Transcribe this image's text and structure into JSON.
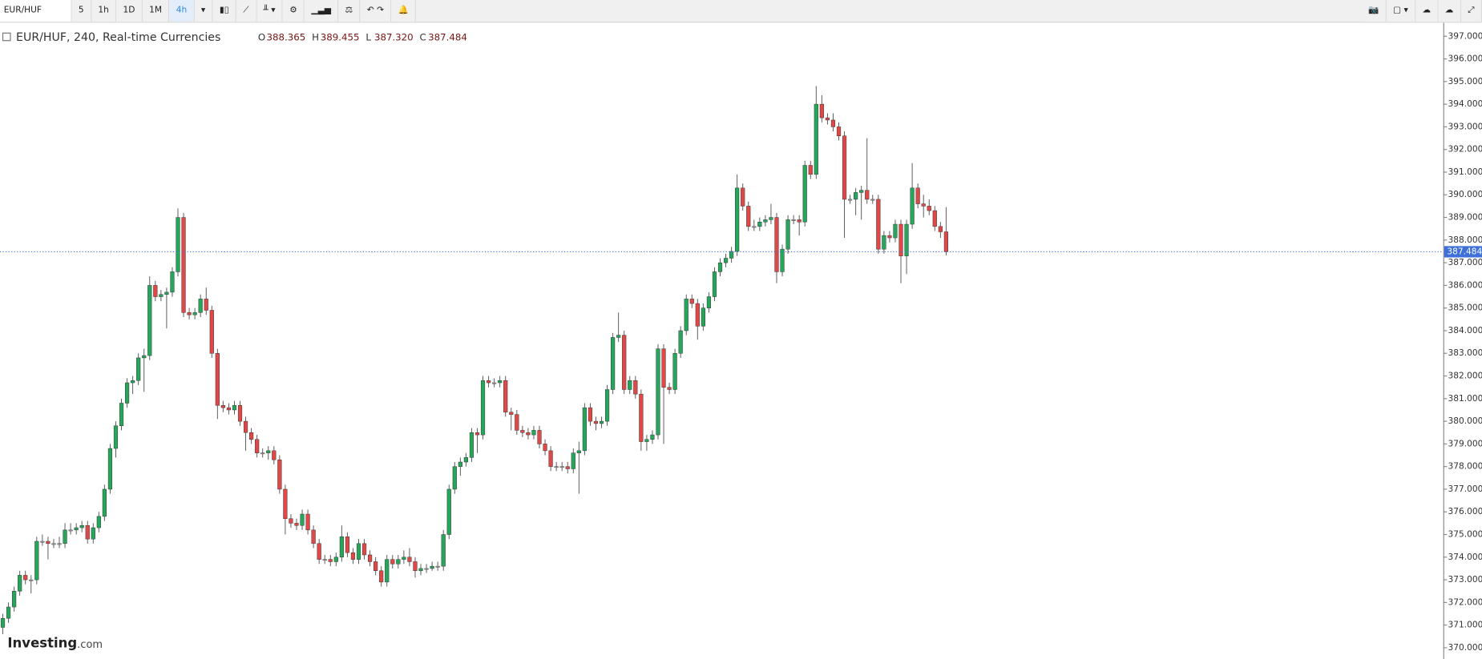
{
  "toolbar": {
    "symbol": "EUR/HUF",
    "intervals": [
      "5",
      "1h",
      "1D",
      "1M",
      "4h"
    ]
  },
  "chart_data": {
    "type": "candlestick",
    "title": "EUR/HUF, 240, Real-time Currencies",
    "ohlc_names": [
      "O",
      "H",
      "L",
      "C"
    ],
    "ohlc_labels": [
      "388.365",
      "389.455",
      "387.320",
      "387.484"
    ],
    "up_color": "#26a65b",
    "down_color": "#e04848",
    "flat_color": "#b8b8b8",
    "price_line_color": "#3f6fd8",
    "ylim": [
      369.5,
      397.6
    ],
    "yticks": [
      {
        "value": 370,
        "label": "370.000"
      },
      {
        "value": 371,
        "label": "371.000"
      },
      {
        "value": 372,
        "label": "372.000"
      },
      {
        "value": 373,
        "label": "373.000"
      },
      {
        "value": 374,
        "label": "374.000"
      },
      {
        "value": 375,
        "label": "375.000"
      },
      {
        "value": 376,
        "label": "376.000"
      },
      {
        "value": 377,
        "label": "377.000"
      },
      {
        "value": 378,
        "label": "378.000"
      },
      {
        "value": 379,
        "label": "379.000"
      },
      {
        "value": 380,
        "label": "380.000"
      },
      {
        "value": 381,
        "label": "381.000"
      },
      {
        "value": 382,
        "label": "382.000"
      },
      {
        "value": 383,
        "label": "383.000"
      },
      {
        "value": 384,
        "label": "384.000"
      },
      {
        "value": 385,
        "label": "385.000"
      },
      {
        "value": 386,
        "label": "386.000"
      },
      {
        "value": 387,
        "label": "387.000"
      },
      {
        "value": 388,
        "label": "388.000"
      },
      {
        "value": 389,
        "label": "389.000"
      },
      {
        "value": 390,
        "label": "390.000"
      },
      {
        "value": 391,
        "label": "391.000"
      },
      {
        "value": 392,
        "label": "392.000"
      },
      {
        "value": 393,
        "label": "393.000"
      },
      {
        "value": 394,
        "label": "394.000"
      },
      {
        "value": 395,
        "label": "395.000"
      },
      {
        "value": 396,
        "label": "396.000"
      },
      {
        "value": 397,
        "label": "397.000"
      }
    ],
    "ohlc": [
      [
        370.9,
        371.5,
        370.6,
        371.3
      ],
      [
        371.3,
        372.0,
        371.1,
        371.8
      ],
      [
        371.8,
        372.7,
        371.6,
        372.5
      ],
      [
        372.5,
        373.4,
        372.3,
        373.2
      ],
      [
        373.2,
        373.4,
        372.8,
        373.0
      ],
      [
        373.0,
        373.2,
        372.4,
        373.0
      ],
      [
        373.0,
        374.9,
        372.8,
        374.7
      ],
      [
        374.7,
        375.0,
        374.5,
        374.7
      ],
      [
        374.7,
        374.9,
        373.9,
        374.6
      ],
      [
        374.6,
        374.8,
        374.4,
        374.6
      ],
      [
        374.6,
        374.9,
        374.4,
        374.6
      ],
      [
        374.6,
        375.5,
        374.4,
        375.2
      ],
      [
        375.2,
        375.5,
        375.0,
        375.2
      ],
      [
        375.2,
        375.5,
        375.0,
        375.3
      ],
      [
        375.3,
        375.6,
        375.1,
        375.4
      ],
      [
        375.4,
        375.6,
        374.6,
        374.8
      ],
      [
        374.8,
        375.5,
        374.6,
        375.3
      ],
      [
        375.3,
        376.0,
        375.1,
        375.8
      ],
      [
        375.8,
        377.2,
        375.6,
        377.0
      ],
      [
        377.0,
        379.0,
        376.8,
        378.8
      ],
      [
        378.8,
        380.0,
        378.4,
        379.8
      ],
      [
        379.8,
        381.0,
        379.6,
        380.8
      ],
      [
        380.8,
        381.9,
        380.6,
        381.7
      ],
      [
        381.7,
        382.0,
        381.2,
        381.8
      ],
      [
        381.8,
        383.0,
        381.6,
        382.8
      ],
      [
        382.8,
        383.2,
        381.3,
        382.9
      ],
      [
        382.9,
        386.4,
        382.7,
        386.0
      ],
      [
        386.0,
        386.2,
        385.3,
        385.5
      ],
      [
        385.5,
        385.8,
        385.3,
        385.6
      ],
      [
        385.6,
        385.9,
        384.1,
        385.7
      ],
      [
        385.7,
        386.8,
        385.5,
        386.6
      ],
      [
        386.6,
        389.4,
        386.4,
        389.0
      ],
      [
        389.0,
        389.2,
        384.6,
        384.8
      ],
      [
        384.8,
        385.0,
        384.5,
        384.7
      ],
      [
        384.7,
        385.0,
        384.5,
        384.8
      ],
      [
        384.8,
        385.6,
        384.6,
        385.4
      ],
      [
        385.4,
        385.9,
        384.7,
        384.9
      ],
      [
        384.9,
        385.1,
        382.8,
        383.0
      ],
      [
        383.0,
        383.2,
        380.1,
        380.7
      ],
      [
        380.7,
        380.9,
        380.4,
        380.6
      ],
      [
        380.6,
        380.8,
        380.3,
        380.5
      ],
      [
        380.5,
        380.9,
        380.3,
        380.7
      ],
      [
        380.7,
        380.9,
        379.8,
        380.0
      ],
      [
        380.0,
        380.2,
        378.7,
        379.5
      ],
      [
        379.5,
        379.7,
        379.0,
        379.2
      ],
      [
        379.2,
        379.4,
        378.4,
        378.6
      ],
      [
        378.6,
        378.8,
        378.4,
        378.6
      ],
      [
        378.6,
        378.9,
        378.3,
        378.7
      ],
      [
        378.7,
        378.9,
        378.1,
        378.3
      ],
      [
        378.3,
        378.5,
        376.8,
        377.0
      ],
      [
        377.0,
        377.2,
        375.0,
        375.7
      ],
      [
        375.7,
        375.9,
        375.3,
        375.5
      ],
      [
        375.5,
        375.7,
        375.2,
        375.4
      ],
      [
        375.4,
        376.1,
        375.2,
        375.9
      ],
      [
        375.9,
        376.1,
        375.0,
        375.2
      ],
      [
        375.2,
        375.4,
        374.4,
        374.6
      ],
      [
        374.6,
        374.8,
        373.7,
        373.9
      ],
      [
        373.9,
        374.1,
        373.7,
        373.9
      ],
      [
        373.9,
        374.1,
        373.6,
        373.8
      ],
      [
        373.8,
        374.2,
        373.6,
        374.0
      ],
      [
        374.0,
        375.4,
        373.8,
        374.9
      ],
      [
        374.9,
        375.1,
        374.0,
        374.2
      ],
      [
        374.2,
        374.4,
        373.7,
        373.9
      ],
      [
        373.9,
        374.8,
        373.7,
        374.6
      ],
      [
        374.6,
        374.8,
        373.9,
        374.1
      ],
      [
        374.1,
        374.3,
        373.6,
        373.8
      ],
      [
        373.8,
        374.0,
        373.2,
        373.4
      ],
      [
        373.4,
        373.6,
        372.7,
        372.9
      ],
      [
        372.9,
        374.1,
        372.7,
        373.9
      ],
      [
        373.9,
        374.1,
        373.5,
        373.7
      ],
      [
        373.7,
        374.1,
        373.5,
        373.9
      ],
      [
        373.9,
        374.3,
        373.7,
        374.0
      ],
      [
        374.0,
        374.4,
        373.6,
        373.8
      ],
      [
        373.8,
        374.0,
        373.1,
        373.4
      ],
      [
        373.4,
        373.7,
        373.2,
        373.5
      ],
      [
        373.5,
        373.7,
        373.3,
        373.5
      ],
      [
        373.5,
        373.8,
        373.4,
        373.6
      ],
      [
        373.6,
        373.8,
        373.4,
        373.6
      ],
      [
        373.6,
        375.2,
        373.4,
        375.0
      ],
      [
        375.0,
        377.2,
        374.8,
        377.0
      ],
      [
        377.0,
        378.2,
        376.8,
        378.0
      ],
      [
        378.0,
        378.4,
        377.6,
        378.2
      ],
      [
        378.2,
        378.6,
        378.0,
        378.4
      ],
      [
        378.4,
        379.7,
        378.2,
        379.5
      ],
      [
        379.5,
        379.7,
        378.6,
        379.4
      ],
      [
        379.4,
        382.0,
        379.2,
        381.8
      ],
      [
        381.8,
        382.0,
        381.5,
        381.7
      ],
      [
        381.7,
        381.9,
        381.5,
        381.7
      ],
      [
        381.7,
        382.0,
        381.5,
        381.8
      ],
      [
        381.8,
        382.0,
        380.2,
        380.4
      ],
      [
        380.4,
        380.6,
        379.6,
        380.3
      ],
      [
        380.3,
        380.5,
        379.4,
        379.6
      ],
      [
        379.6,
        379.8,
        379.3,
        379.5
      ],
      [
        379.5,
        379.7,
        379.2,
        379.4
      ],
      [
        379.4,
        379.8,
        379.2,
        379.6
      ],
      [
        379.6,
        379.8,
        378.8,
        379.0
      ],
      [
        379.0,
        379.2,
        378.5,
        378.7
      ],
      [
        378.7,
        378.9,
        377.8,
        378.0
      ],
      [
        378.0,
        378.2,
        377.8,
        378.0
      ],
      [
        378.0,
        378.2,
        377.8,
        378.0
      ],
      [
        378.0,
        378.2,
        377.7,
        377.9
      ],
      [
        377.9,
        378.8,
        377.7,
        378.6
      ],
      [
        378.6,
        379.1,
        376.8,
        378.7
      ],
      [
        378.7,
        380.8,
        378.5,
        380.6
      ],
      [
        380.6,
        380.8,
        379.8,
        380.0
      ],
      [
        380.0,
        380.2,
        379.6,
        379.9
      ],
      [
        379.9,
        380.2,
        379.7,
        380.0
      ],
      [
        380.0,
        381.6,
        379.8,
        381.4
      ],
      [
        381.4,
        383.9,
        381.2,
        383.7
      ],
      [
        383.7,
        384.8,
        383.5,
        383.8
      ],
      [
        383.8,
        384.0,
        381.2,
        381.4
      ],
      [
        381.4,
        382.0,
        381.2,
        381.8
      ],
      [
        381.8,
        382.0,
        381.0,
        381.2
      ],
      [
        381.2,
        381.4,
        378.7,
        379.1
      ],
      [
        379.1,
        379.4,
        378.7,
        379.2
      ],
      [
        379.2,
        379.6,
        379.0,
        379.4
      ],
      [
        379.4,
        383.4,
        379.2,
        383.2
      ],
      [
        383.2,
        383.4,
        379.0,
        381.5
      ],
      [
        381.5,
        381.7,
        381.2,
        381.4
      ],
      [
        381.4,
        383.2,
        381.2,
        383.0
      ],
      [
        383.0,
        384.2,
        382.8,
        384.0
      ],
      [
        384.0,
        385.6,
        383.8,
        385.4
      ],
      [
        385.4,
        385.6,
        385.0,
        385.2
      ],
      [
        385.2,
        385.4,
        383.6,
        384.2
      ],
      [
        384.2,
        385.2,
        384.0,
        385.0
      ],
      [
        385.0,
        385.7,
        384.8,
        385.5
      ],
      [
        385.5,
        386.8,
        385.3,
        386.6
      ],
      [
        386.6,
        387.2,
        386.4,
        387.0
      ],
      [
        387.0,
        387.4,
        386.8,
        387.2
      ],
      [
        387.2,
        387.7,
        387.0,
        387.5
      ],
      [
        387.5,
        390.9,
        387.3,
        390.3
      ],
      [
        390.3,
        390.5,
        389.3,
        389.5
      ],
      [
        389.5,
        389.7,
        388.4,
        388.6
      ],
      [
        388.6,
        388.9,
        388.4,
        388.6
      ],
      [
        388.6,
        389.0,
        388.4,
        388.8
      ],
      [
        388.8,
        389.1,
        388.6,
        388.9
      ],
      [
        388.9,
        389.6,
        388.7,
        389.0
      ],
      [
        389.0,
        389.2,
        386.1,
        386.6
      ],
      [
        386.6,
        387.8,
        386.4,
        387.6
      ],
      [
        387.6,
        389.1,
        387.4,
        388.9
      ],
      [
        388.9,
        389.1,
        388.7,
        388.9
      ],
      [
        388.9,
        389.1,
        388.2,
        388.8
      ],
      [
        388.8,
        391.5,
        388.6,
        391.3
      ],
      [
        391.3,
        391.5,
        390.7,
        390.9
      ],
      [
        390.9,
        394.8,
        390.7,
        394.0
      ],
      [
        394.0,
        394.4,
        393.2,
        393.4
      ],
      [
        393.4,
        393.6,
        393.1,
        393.3
      ],
      [
        393.3,
        393.6,
        392.8,
        393.0
      ],
      [
        393.0,
        393.2,
        392.4,
        392.6
      ],
      [
        392.6,
        392.8,
        388.1,
        389.8
      ],
      [
        389.8,
        390.0,
        389.6,
        389.8
      ],
      [
        389.8,
        390.3,
        389.1,
        390.1
      ],
      [
        390.1,
        390.4,
        388.9,
        390.2
      ],
      [
        390.2,
        392.5,
        389.6,
        389.8
      ],
      [
        389.8,
        390.0,
        389.6,
        389.8
      ],
      [
        389.8,
        390.0,
        387.4,
        387.6
      ],
      [
        387.6,
        388.4,
        387.4,
        388.2
      ],
      [
        388.2,
        388.4,
        387.9,
        388.1
      ],
      [
        388.1,
        388.9,
        387.9,
        388.7
      ],
      [
        388.7,
        388.9,
        386.1,
        387.3
      ],
      [
        387.3,
        388.9,
        386.5,
        388.7
      ],
      [
        388.7,
        391.4,
        388.5,
        390.3
      ],
      [
        390.3,
        390.5,
        389.4,
        389.6
      ],
      [
        389.6,
        390.0,
        389.0,
        389.5
      ],
      [
        389.5,
        389.8,
        389.1,
        389.3
      ],
      [
        389.3,
        389.5,
        388.4,
        388.6
      ],
      [
        388.6,
        388.8,
        388.1,
        388.365
      ],
      [
        388.365,
        389.455,
        387.32,
        387.484
      ]
    ]
  },
  "footer": {
    "logo": "Investing",
    "logo_suffix": ".com"
  }
}
